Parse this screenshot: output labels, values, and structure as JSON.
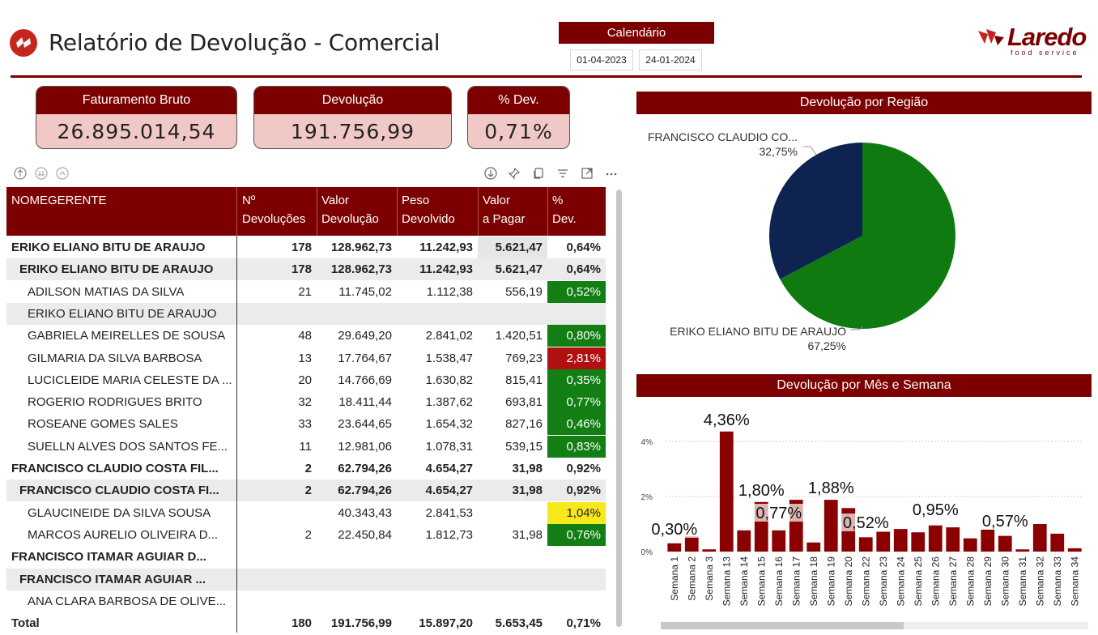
{
  "header": {
    "title": "Relatório de Devolução - Comercial",
    "calendar_label": "Calendário",
    "date_start": "01-04-2023",
    "date_end": "24-01-2024",
    "brand_name": "Laredo",
    "brand_tagline": "food service"
  },
  "kpis": [
    {
      "label": "Faturamento Bruto",
      "value": "26.895.014,54"
    },
    {
      "label": "Devolução",
      "value": "191.756,99"
    },
    {
      "label": "% Dev.",
      "value": "0,71%"
    }
  ],
  "table": {
    "columns": [
      "NOMEGERENTE",
      "Nº Devoluções",
      "Valor Devolução",
      "Peso Devolvido",
      "Valor a Pagar",
      "% Dev."
    ],
    "rows": [
      {
        "level": 0,
        "name": "ERIKO ELIANO BITU DE ARAUJO",
        "n": "178",
        "valor": "128.962,73",
        "peso": "11.242,93",
        "pagar": "5.621,47",
        "pct": "0,64%",
        "status": "none"
      },
      {
        "level": 1,
        "name": "ERIKO ELIANO BITU DE ARAUJO",
        "n": "178",
        "valor": "128.962,73",
        "peso": "11.242,93",
        "pagar": "5.621,47",
        "pct": "0,64%",
        "status": "none"
      },
      {
        "level": 2,
        "name": "ADILSON MATIAS DA SILVA",
        "n": "21",
        "valor": "11.745,02",
        "peso": "1.112,38",
        "pagar": "556,19",
        "pct": "0,52%",
        "status": "green"
      },
      {
        "level": 2,
        "name": "ERIKO ELIANO BITU DE ARAUJO",
        "n": "",
        "valor": "",
        "peso": "",
        "pagar": "",
        "pct": "",
        "status": "none"
      },
      {
        "level": 2,
        "name": "GABRIELA MEIRELLES DE SOUSA",
        "n": "48",
        "valor": "29.649,20",
        "peso": "2.841,02",
        "pagar": "1.420,51",
        "pct": "0,80%",
        "status": "green"
      },
      {
        "level": 2,
        "name": "GILMARIA DA SILVA BARBOSA",
        "n": "13",
        "valor": "17.764,67",
        "peso": "1.538,47",
        "pagar": "769,23",
        "pct": "2,81%",
        "status": "red"
      },
      {
        "level": 2,
        "name": "LUCICLEIDE MARIA CELESTE DA ...",
        "n": "20",
        "valor": "14.766,69",
        "peso": "1.630,82",
        "pagar": "815,41",
        "pct": "0,35%",
        "status": "green"
      },
      {
        "level": 2,
        "name": "ROGERIO RODRIGUES BRITO",
        "n": "32",
        "valor": "18.411,44",
        "peso": "1.387,62",
        "pagar": "693,81",
        "pct": "0,77%",
        "status": "green"
      },
      {
        "level": 2,
        "name": "ROSEANE GOMES SALES",
        "n": "33",
        "valor": "23.644,65",
        "peso": "1.654,32",
        "pagar": "827,16",
        "pct": "0,46%",
        "status": "green"
      },
      {
        "level": 2,
        "name": "SUELLN ALVES DOS SANTOS FE...",
        "n": "11",
        "valor": "12.981,06",
        "peso": "1.078,31",
        "pagar": "539,15",
        "pct": "0,83%",
        "status": "green"
      },
      {
        "level": 0,
        "name": "FRANCISCO CLAUDIO COSTA FIL...",
        "n": "2",
        "valor": "62.794,26",
        "peso": "4.654,27",
        "pagar": "31,98",
        "pct": "0,92%",
        "status": "none"
      },
      {
        "level": 1,
        "name": "FRANCISCO CLAUDIO COSTA FI...",
        "n": "2",
        "valor": "62.794,26",
        "peso": "4.654,27",
        "pagar": "31,98",
        "pct": "0,92%",
        "status": "none"
      },
      {
        "level": 2,
        "name": "GLAUCINEIDE DA SILVA SOUSA",
        "n": "",
        "valor": "40.343,43",
        "peso": "2.841,53",
        "pagar": "",
        "pct": "1,04%",
        "status": "yellow"
      },
      {
        "level": 2,
        "name": "MARCOS AURELIO OLIVEIRA D...",
        "n": "2",
        "valor": "22.450,84",
        "peso": "1.812,73",
        "pagar": "31,98",
        "pct": "0,76%",
        "status": "green"
      },
      {
        "level": 0,
        "name": "FRANCISCO ITAMAR AGUIAR D...",
        "n": "",
        "valor": "",
        "peso": "",
        "pagar": "",
        "pct": "",
        "status": "none"
      },
      {
        "level": 1,
        "name": "FRANCISCO ITAMAR AGUIAR ...",
        "n": "",
        "valor": "",
        "peso": "",
        "pagar": "",
        "pct": "",
        "status": "none"
      },
      {
        "level": 2,
        "name": "ANA CLARA BARBOSA DE OLIVE...",
        "n": "",
        "valor": "",
        "peso": "",
        "pagar": "",
        "pct": "",
        "status": "none"
      }
    ],
    "total": {
      "name": "Total",
      "n": "180",
      "valor": "191.756,99",
      "peso": "15.897,20",
      "pagar": "5.653,45",
      "pct": "0,71%"
    }
  },
  "colors": {
    "maroon": "#7d0000",
    "kpi_fill": "#f0c8c6",
    "green": "#137e13",
    "red": "#b01010",
    "yellow": "#f7e81a",
    "pie_green": "#0f7a0f",
    "pie_navy": "#0f2350",
    "bar_fill": "#8b0000"
  },
  "chart_data": [
    {
      "type": "pie",
      "title": "Devolução por Região",
      "slices": [
        {
          "name": "ERIKO ELIANO BITU DE ARAUJO",
          "value": 67.25,
          "label": "67,25%"
        },
        {
          "name": "FRANCISCO CLAUDIO CO...",
          "value": 32.75,
          "label": "32,75%"
        }
      ]
    },
    {
      "type": "bar",
      "title": "Devolução por Mês e Semana",
      "ylabel": "",
      "xlabel": "",
      "yticks": [
        "0%",
        "2%",
        "4%"
      ],
      "ylim": [
        0,
        4.6
      ],
      "grid": true,
      "categories": [
        "Semana 1",
        "Semana 2",
        "Semana 3",
        "Semana 13",
        "Semana 14",
        "Semana 15",
        "Semana 16",
        "Semana 17",
        "Semana 18",
        "Semana 19",
        "Semana 20",
        "Semana 22",
        "Semana 23",
        "Semana 24",
        "Semana 25",
        "Semana 26",
        "Semana 27",
        "Semana 28",
        "Semana 29",
        "Semana 30",
        "Semana 31",
        "Semana 32",
        "Semana 33",
        "Semana 34"
      ],
      "values": [
        0.3,
        0.55,
        0.08,
        4.36,
        0.77,
        1.8,
        0.77,
        1.88,
        0.33,
        1.88,
        1.58,
        0.52,
        0.72,
        0.82,
        0.7,
        0.95,
        0.88,
        0.48,
        0.8,
        0.57,
        0.08,
        1.0,
        0.65,
        0.12
      ],
      "data_labels": [
        {
          "index": 0,
          "text": "0,30%"
        },
        {
          "index": 3,
          "text": "4,36%"
        },
        {
          "index": 5,
          "text": "1,80%"
        },
        {
          "index": 6,
          "text": "0,77%"
        },
        {
          "index": 9,
          "text": "1,88%"
        },
        {
          "index": 11,
          "text": "0,52%"
        },
        {
          "index": 15,
          "text": "0,95%"
        },
        {
          "index": 19,
          "text": "0,57%"
        }
      ]
    }
  ]
}
